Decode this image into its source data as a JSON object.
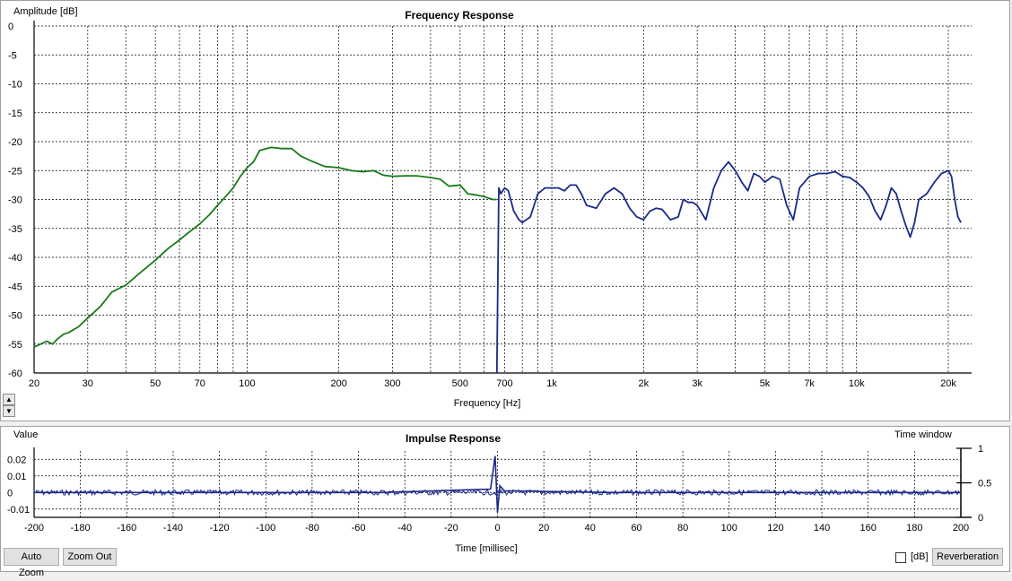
{
  "freq": {
    "ylabel": "Amplitude [dB]",
    "title": "Frequency Response",
    "xlabel": "Frequency [Hz]",
    "yticks": [
      "0",
      "-5",
      "-10",
      "-15",
      "-20",
      "-25",
      "-30",
      "-35",
      "-40",
      "-45",
      "-50",
      "-55",
      "-60"
    ],
    "xticks": [
      {
        "v": 20,
        "l": "20"
      },
      {
        "v": 30,
        "l": "30"
      },
      {
        "v": 50,
        "l": "50"
      },
      {
        "v": 70,
        "l": "70"
      },
      {
        "v": 100,
        "l": "100"
      },
      {
        "v": 200,
        "l": "200"
      },
      {
        "v": 300,
        "l": "300"
      },
      {
        "v": 500,
        "l": "500"
      },
      {
        "v": 700,
        "l": "700"
      },
      {
        "v": 1000,
        "l": "1k"
      },
      {
        "v": 2000,
        "l": "2k"
      },
      {
        "v": 3000,
        "l": "3k"
      },
      {
        "v": 5000,
        "l": "5k"
      },
      {
        "v": 7000,
        "l": "7k"
      },
      {
        "v": 10000,
        "l": "10k"
      },
      {
        "v": 20000,
        "l": "20k"
      }
    ]
  },
  "imp": {
    "ylabel": "Value",
    "title": "Impulse Response",
    "right_label": "Time window",
    "xlabel": "Time [millisec]",
    "yticks": [
      {
        "v": 0.02,
        "l": "0.02"
      },
      {
        "v": 0.01,
        "l": "0.01"
      },
      {
        "v": 0,
        "l": "0"
      },
      {
        "v": -0.01,
        "l": "-0.01"
      }
    ],
    "xticks": [
      "-200",
      "-180",
      "-160",
      "-140",
      "-120",
      "-100",
      "-80",
      "-60",
      "-40",
      "-20",
      "0",
      "20",
      "40",
      "60",
      "80",
      "100",
      "120",
      "140",
      "160",
      "180",
      "200"
    ],
    "window_ticks": [
      {
        "v": 1,
        "l": "1"
      },
      {
        "v": 0.5,
        "l": "0.5"
      },
      {
        "v": 0,
        "l": "0"
      }
    ]
  },
  "controls": {
    "auto_zoom": "Auto Zoom",
    "zoom_out": "Zoom Out",
    "db_label": "[dB]",
    "reverberation": "Reverberation",
    "spin_up": "▲",
    "spin_down": "▼"
  },
  "chart_data": [
    {
      "type": "line",
      "title": "Frequency Response",
      "xlabel": "Frequency [Hz]",
      "ylabel": "Amplitude [dB]",
      "xscale": "log",
      "xlim": [
        20,
        22000
      ],
      "ylim": [
        -60,
        0
      ],
      "grid": true,
      "series": [
        {
          "color": "#1a7a1a",
          "x": [
            20,
            21,
            22,
            23,
            24,
            25,
            26,
            28,
            30,
            33,
            36,
            40,
            45,
            50,
            55,
            60,
            65,
            70,
            75,
            80,
            85,
            90,
            95,
            100,
            105,
            110,
            120,
            130,
            140,
            150,
            165,
            180,
            200,
            220,
            240,
            260,
            280,
            300,
            330,
            360,
            400,
            430,
            460,
            500,
            530,
            560,
            600,
            640,
            660
          ],
          "y": [
            -55.5,
            -55,
            -54.5,
            -55,
            -54,
            -53.3,
            -53,
            -52,
            -50.5,
            -48.5,
            -46,
            -44.8,
            -42.5,
            -40.5,
            -38.5,
            -37,
            -35.5,
            -34.2,
            -32.7,
            -31,
            -29.5,
            -28,
            -26,
            -24.5,
            -23.5,
            -21.5,
            -21,
            -21.2,
            -21.2,
            -22.5,
            -23.5,
            -24.3,
            -24.5,
            -25,
            -25.2,
            -25,
            -25.8,
            -26,
            -25.9,
            -25.9,
            -26.2,
            -26.5,
            -27.7,
            -27.5,
            -29,
            -29.2,
            -29.5,
            -30,
            -30
          ]
        },
        {
          "color": "#1a2a8a",
          "x": [
            660,
            670,
            680,
            700,
            720,
            750,
            780,
            800,
            850,
            900,
            950,
            1000,
            1050,
            1100,
            1150,
            1200,
            1250,
            1300,
            1400,
            1500,
            1600,
            1700,
            1800,
            1900,
            2000,
            2100,
            2200,
            2300,
            2450,
            2600,
            2700,
            2800,
            2900,
            3000,
            3200,
            3400,
            3600,
            3800,
            4000,
            4200,
            4400,
            4600,
            4800,
            5000,
            5300,
            5600,
            5900,
            6200,
            6500,
            7000,
            7500,
            8000,
            8500,
            9000,
            9500,
            10000,
            10500,
            11000,
            11500,
            12000,
            12500,
            13000,
            13500,
            14000,
            14500,
            15000,
            15500,
            16000,
            17000,
            18000,
            19000,
            20000,
            20500,
            21000,
            21500,
            22000
          ],
          "y": [
            -60,
            -28,
            -29,
            -28,
            -28.5,
            -32,
            -33.5,
            -34,
            -33,
            -29,
            -28,
            -28,
            -28,
            -28.5,
            -27.5,
            -27.5,
            -29,
            -31,
            -31.5,
            -29,
            -28,
            -29,
            -31.5,
            -33,
            -33.5,
            -32,
            -31.5,
            -31.7,
            -33.5,
            -33,
            -30,
            -30.5,
            -30.5,
            -31,
            -33.5,
            -28,
            -25,
            -23.5,
            -25,
            -27,
            -28.5,
            -25.5,
            -26,
            -27,
            -26,
            -26.5,
            -31,
            -33.5,
            -28,
            -26,
            -25.5,
            -25.5,
            -25.2,
            -26,
            -26.2,
            -27,
            -28,
            -29.5,
            -32,
            -33.5,
            -31,
            -28,
            -29,
            -32,
            -34.5,
            -36.5,
            -34,
            -30,
            -29,
            -27,
            -25.5,
            -25,
            -26,
            -30,
            -33,
            -34
          ]
        }
      ]
    },
    {
      "type": "line",
      "title": "Impulse Response",
      "xlabel": "Time [millisec]",
      "ylabel": "Value",
      "xlim": [
        -200,
        200
      ],
      "ylim": [
        -0.015,
        0.025
      ],
      "grid": true,
      "series": [
        {
          "color": "#1a2a8a",
          "x": [
            -200,
            -150,
            -100,
            -50,
            -3,
            -1,
            0,
            1,
            3,
            50,
            100,
            150,
            200
          ],
          "y": [
            0,
            0,
            0,
            0,
            0.002,
            0.022,
            -0.012,
            0.004,
            0.001,
            0,
            0,
            0,
            0
          ]
        }
      ],
      "secondary_axis": {
        "label": "Time window",
        "ticks": [
          0,
          0.5,
          1
        ]
      }
    }
  ]
}
